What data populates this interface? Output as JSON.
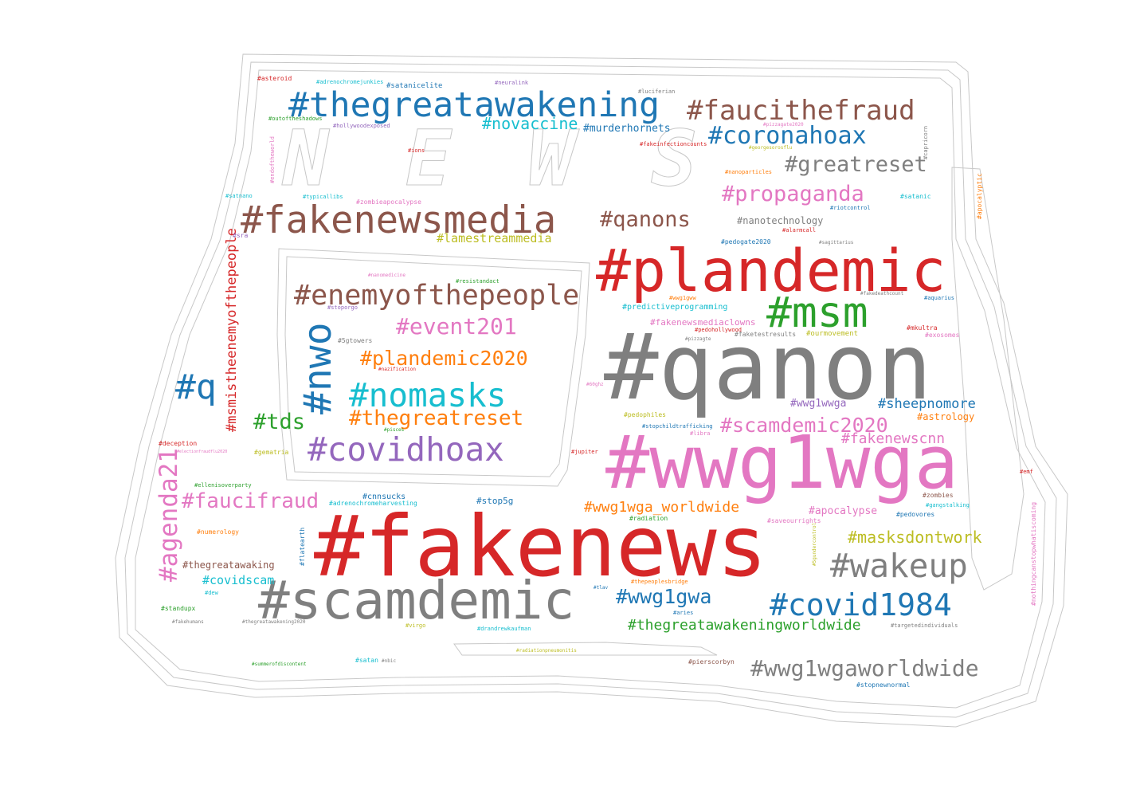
{
  "background_text": "NEWS",
  "words": [
    "#thegreatawakening",
    "#faucithefraud",
    "#novaccine",
    "#murderhornets",
    "#coronahoax",
    "#greatreset",
    "#propaganda",
    "#fakenewsmedia",
    "#qanons",
    "#nanotechnology",
    "#lamestreammedia",
    "#plandemic",
    "#enemyofthepeople",
    "#msm",
    "#event201",
    "#qanon",
    "#plandemic2020",
    "#nwo",
    "#q",
    "#nomasks",
    "#thegreatreset",
    "#tds",
    "#covidhoax",
    "#scamdemic2020",
    "#wwg1wga",
    "#sheepnomore",
    "#wwg1wwga",
    "#astrology",
    "#fakenewscnn",
    "#agenda21",
    "#msmistheenemyofthepeople",
    "#faucifraud",
    "#wwg1wga_worldwide",
    "#fakenews",
    "#apocalypse",
    "#masksdontwork",
    "#wakeup",
    "#scamdemic",
    "#covid1984",
    "#wwg1gwa",
    "#thegreatawakeningworldwide",
    "#wwg1wgaworldwide",
    "#covidscam",
    "#thegreatawaking",
    "#cnnsucks",
    "#adrenochromeharvesting",
    "#stop5g",
    "#asteroid",
    "#adrenochromejunkies",
    "#satanicelite",
    "#neuralink",
    "#luciferian",
    "#outoftheshadows",
    "#hollywoodexposed",
    "#endoftheworld",
    "#pizzagate2020",
    "#capricorn",
    "#fakeinfectioncounts",
    "#georgesorosflu",
    "#ions",
    "#nanoparticles",
    "#apocalyptic",
    "#satnano",
    "#typicallibs",
    "#zombieapocalypse",
    "#satanic",
    "#riotcontrol",
    "#alarmcall",
    "#sra",
    "#pedogate2020",
    "#sagittarius",
    "#nanomedicine",
    "#resistandact",
    "#wwg1gww",
    "#fakedeathcount",
    "#aquarius",
    "#stoporgo",
    "#predictiveprogramming",
    "#fakenewsmediaclowns",
    "#pedohollywood",
    "#ourmovement",
    "#faketestresults",
    "#mkultra",
    "#exosomes",
    "#pizzagte",
    "#5gtowers",
    "#nazification",
    "#60ghz",
    "#pedophiles",
    "#stopchildtrafficking",
    "#libra",
    "#pisces",
    "#deception",
    "#gematria",
    "#electionfraudflu2020",
    "#jupiter",
    "#emf",
    "#zombies",
    "#ellenisoverparty",
    "#gangstalking",
    "#nothingcanstopwhatiscoming",
    "#radiation",
    "#saveourrights",
    "#pedovores",
    "#numerology",
    "#flatearth",
    "#5gundercontrol",
    "#thepeoplesbridge",
    "#tlav",
    "#dew",
    "#standupx",
    "#aries",
    "#fakehumans",
    "#thegreatawakening2020",
    "#virgo",
    "#drandrewkaufman",
    "#targetedindividuals",
    "#radiationpneumonitis",
    "#summerofdiscontent",
    "#satan",
    "#nbic",
    "#pierscorbyn",
    "#stopnewnormal"
  ]
}
